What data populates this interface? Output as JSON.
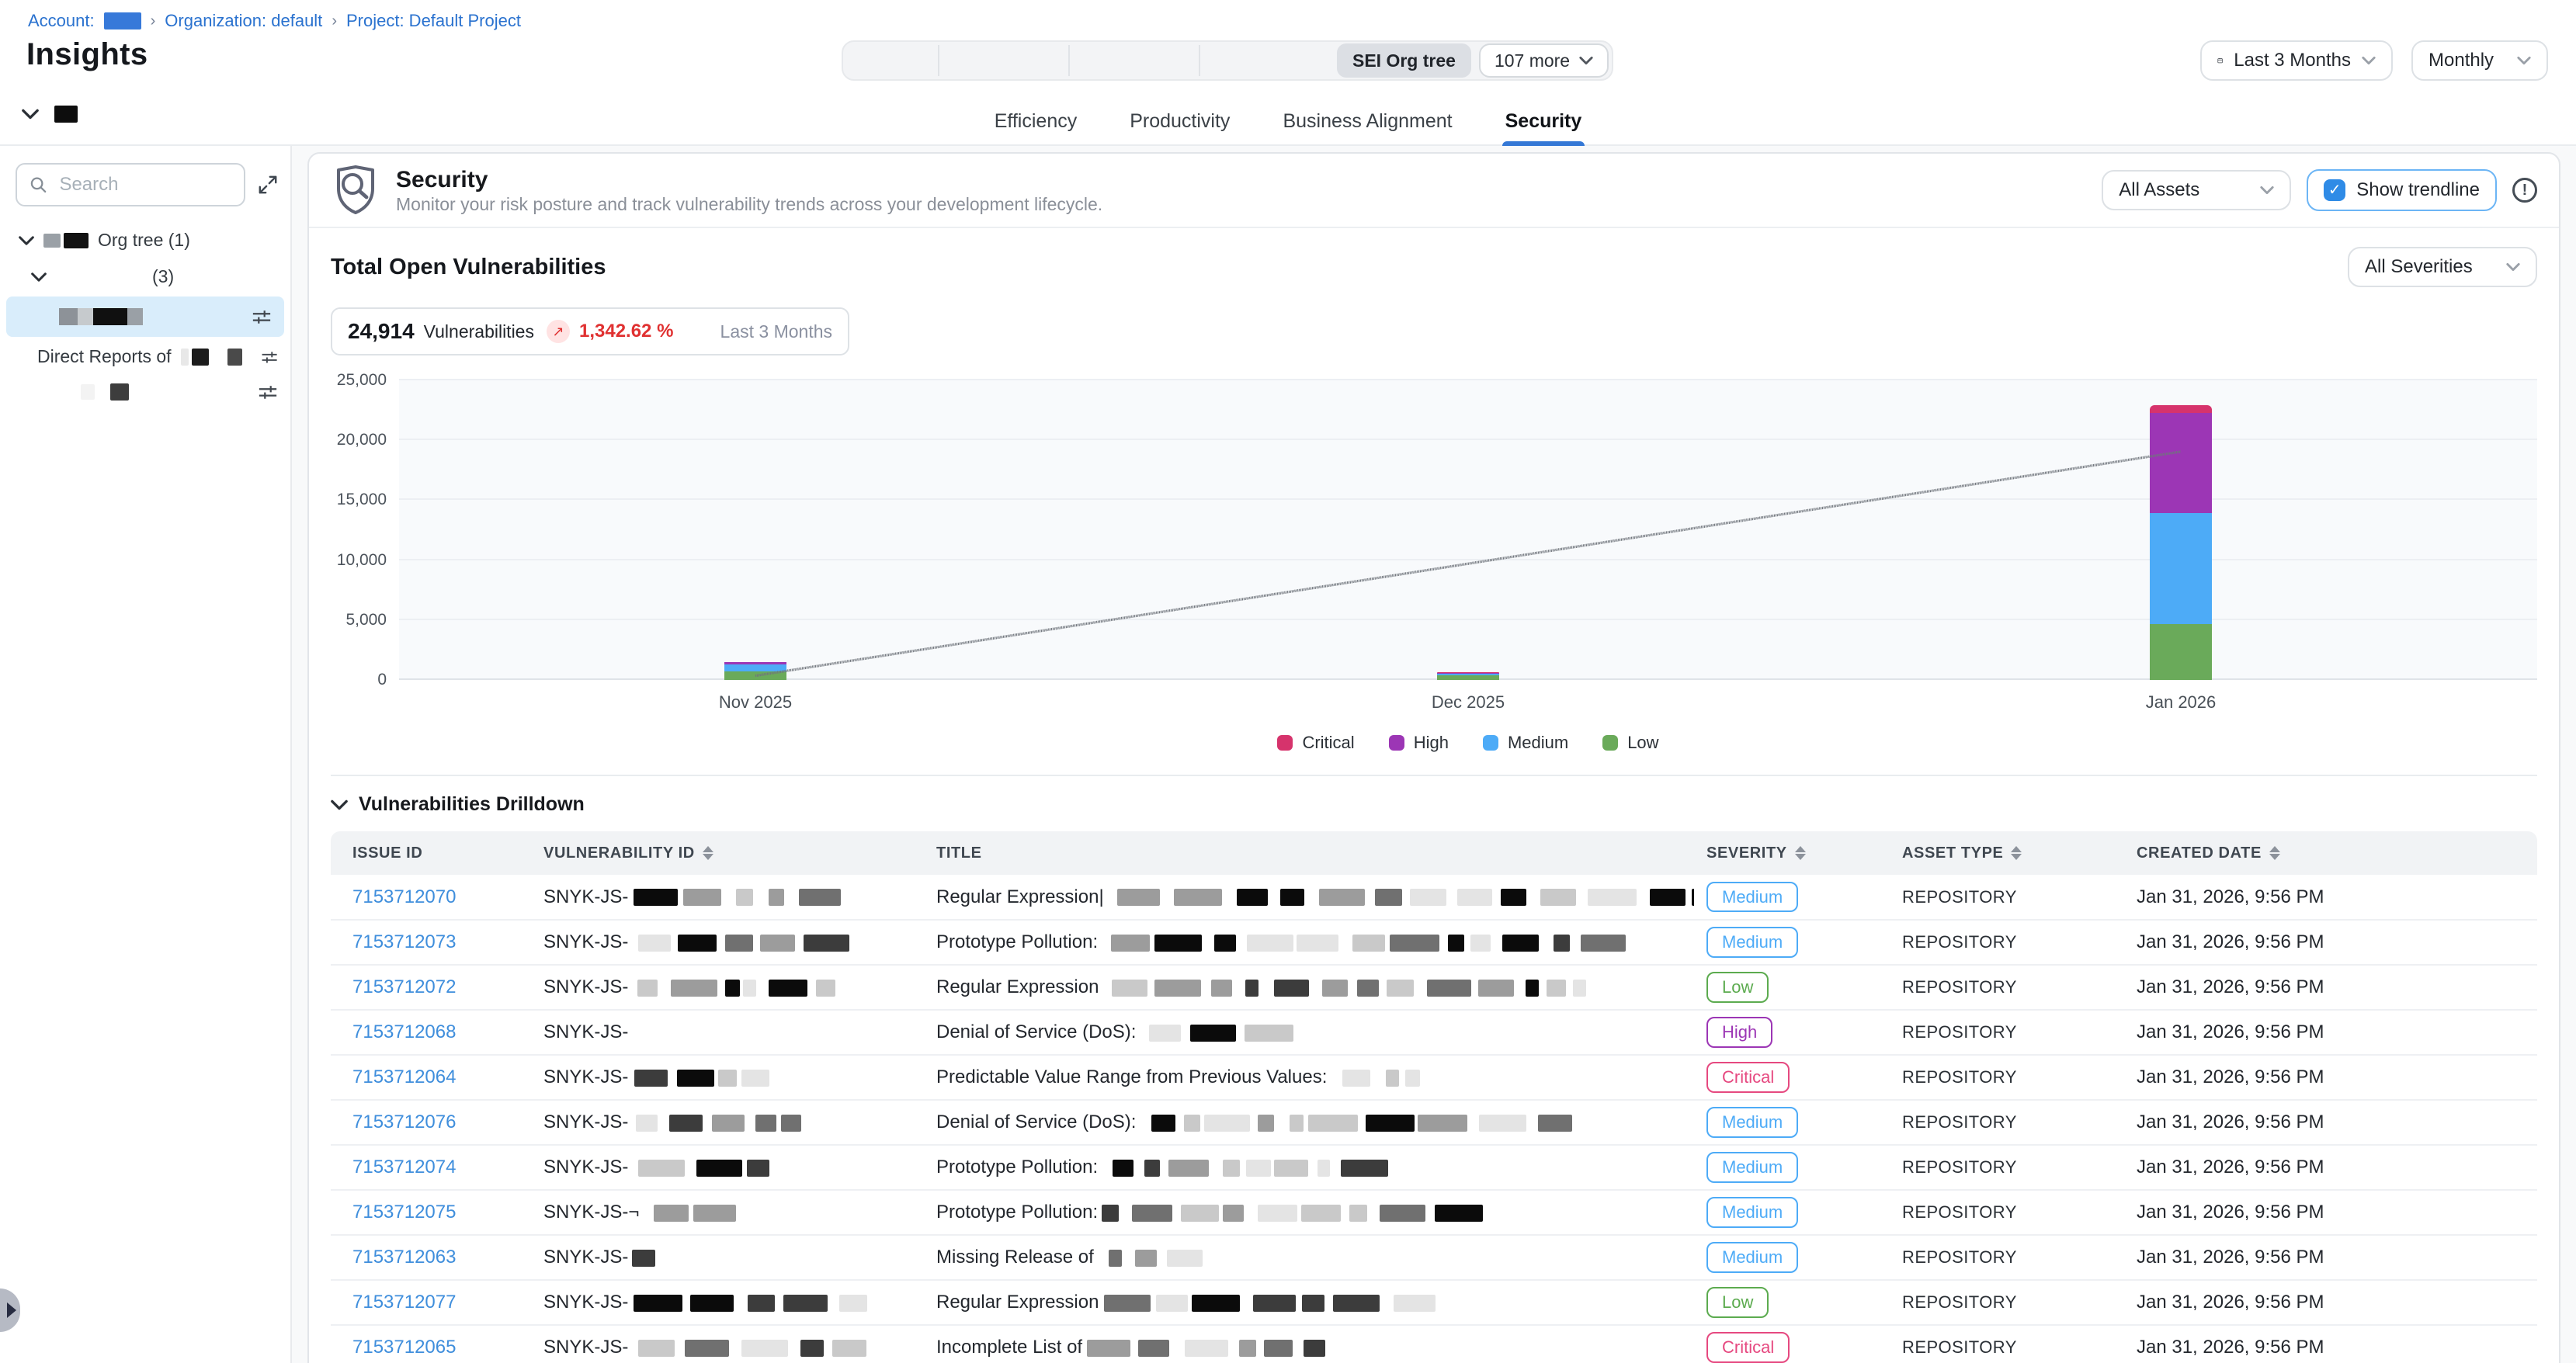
{
  "breadcrumb": {
    "account_label": "Account:",
    "separator": "›",
    "organization": "Organization: default",
    "project": "Project: Default Project"
  },
  "page_title": "Insights",
  "top_toolbar": {
    "selected_segment": "SEI Org tree",
    "more_button": "107 more"
  },
  "date_range": {
    "value": "Last 3 Months"
  },
  "granularity": {
    "value": "Monthly"
  },
  "tabs": [
    {
      "label": "Efficiency",
      "active": false
    },
    {
      "label": "Productivity",
      "active": false
    },
    {
      "label": "Business Alignment",
      "active": false
    },
    {
      "label": "Security",
      "active": true
    }
  ],
  "sidebar": {
    "search_placeholder": "Search",
    "org_tree_label": "Org tree (1)",
    "group_count_label": "(3)",
    "direct_reports_label": "Direct Reports of"
  },
  "security_section": {
    "title": "Security",
    "subtitle": "Monitor your risk posture and track vulnerability trends across your development lifecycle.",
    "assets_filter_value": "All Assets",
    "show_trendline_label": "Show trendline",
    "trendline_checked": true,
    "checkmark": "✓"
  },
  "summary": {
    "heading": "Total Open Vulnerabilities",
    "severity_filter_value": "All Severities",
    "count": "24,914",
    "count_label": "Vulnerabilities",
    "delta_icon": "↗",
    "delta_percent": "1,342.62 %",
    "period_label": "Last 3 Months"
  },
  "chart_data": {
    "type": "bar",
    "stacked": true,
    "title": "Total Open Vulnerabilities",
    "categories": [
      "Nov 2025",
      "Dec 2025",
      "Jan 2026"
    ],
    "series": [
      {
        "name": "Critical",
        "color": "#d6336c",
        "values": [
          40,
          25,
          600
        ]
      },
      {
        "name": "High",
        "color": "#9c36b5",
        "values": [
          160,
          90,
          8400
        ]
      },
      {
        "name": "Medium",
        "color": "#4dabf7",
        "values": [
          600,
          130,
          9250
        ]
      },
      {
        "name": "Low",
        "color": "#6aaa5a",
        "values": [
          700,
          380,
          4650
        ]
      }
    ],
    "trendline": {
      "show": true,
      "style": "dashed",
      "color": "#70757c",
      "values": [
        350,
        9700,
        19050
      ]
    },
    "ylim": [
      0,
      25000
    ],
    "yticks": [
      0,
      5000,
      10000,
      15000,
      20000,
      25000
    ],
    "ytick_labels": [
      "0",
      "5,000",
      "10,000",
      "15,000",
      "20,000",
      "25,000"
    ],
    "legend_position": "bottom",
    "grid": true
  },
  "drilldown": {
    "title": "Vulnerabilities Drilldown",
    "columns": [
      {
        "label": "ISSUE ID",
        "sortable": false
      },
      {
        "label": "VULNERABILITY ID",
        "sortable": true
      },
      {
        "label": "TITLE",
        "sortable": false
      },
      {
        "label": "SEVERITY",
        "sortable": true
      },
      {
        "label": "ASSET TYPE",
        "sortable": true
      },
      {
        "label": "CREATED DATE",
        "sortable": true
      }
    ],
    "severity_colors": {
      "Critical": "#e64980",
      "High": "#9c36b5",
      "Medium": "#4dabf7",
      "Low": "#5cab4f"
    },
    "rows": [
      {
        "issue_id": "7153712070",
        "vuln_id_prefix": "SNYK-JS-",
        "title_prefix": "Regular Expression|",
        "severity": "Medium",
        "asset_type": "REPOSITORY",
        "created_date": "Jan 31, 2026, 9:56 PM",
        "vuln_redact": 5,
        "title_redact": 14
      },
      {
        "issue_id": "7153712073",
        "vuln_id_prefix": "SNYK-JS-",
        "title_prefix": "Prototype Pollution:",
        "severity": "Medium",
        "asset_type": "REPOSITORY",
        "created_date": "Jan 31, 2026, 9:56 PM",
        "vuln_redact": 5,
        "title_redact": 12
      },
      {
        "issue_id": "7153712072",
        "vuln_id_prefix": "SNYK-JS-",
        "title_prefix": "Regular Expression",
        "severity": "Low",
        "asset_type": "REPOSITORY",
        "created_date": "Jan 31, 2026, 9:56 PM",
        "vuln_redact": 6,
        "title_redact": 13
      },
      {
        "issue_id": "7153712068",
        "vuln_id_prefix": "SNYK-JS-",
        "title_prefix": "Denial of Service (DoS):",
        "severity": "High",
        "asset_type": "REPOSITORY",
        "created_date": "Jan 31, 2026, 9:56 PM",
        "vuln_redact": 0,
        "title_redact": 3
      },
      {
        "issue_id": "7153712064",
        "vuln_id_prefix": "SNYK-JS-",
        "title_prefix": "Predictable Value Range from Previous Values:",
        "severity": "Critical",
        "asset_type": "REPOSITORY",
        "created_date": "Jan 31, 2026, 9:56 PM",
        "vuln_redact": 4,
        "title_redact": 3
      },
      {
        "issue_id": "7153712076",
        "vuln_id_prefix": "SNYK-JS-",
        "title_prefix": "Denial of Service (DoS):",
        "severity": "Medium",
        "asset_type": "REPOSITORY",
        "created_date": "Jan 31, 2026, 9:56 PM",
        "vuln_redact": 5,
        "title_redact": 10
      },
      {
        "issue_id": "7153712074",
        "vuln_id_prefix": "SNYK-JS-",
        "title_prefix": "Prototype Pollution:",
        "severity": "Medium",
        "asset_type": "REPOSITORY",
        "created_date": "Jan 31, 2026, 9:56 PM",
        "vuln_redact": 3,
        "title_redact": 8
      },
      {
        "issue_id": "7153712075",
        "vuln_id_prefix": "SNYK-JS-¬",
        "title_prefix": "Prototype Pollution:",
        "severity": "Medium",
        "asset_type": "REPOSITORY",
        "created_date": "Jan 31, 2026, 9:56 PM",
        "vuln_redact": 2,
        "title_redact": 9
      },
      {
        "issue_id": "7153712063",
        "vuln_id_prefix": "SNYK-JS-",
        "title_prefix": "Missing Release of",
        "severity": "Medium",
        "asset_type": "REPOSITORY",
        "created_date": "Jan 31, 2026, 9:56 PM",
        "vuln_redact": 1,
        "title_redact": 3
      },
      {
        "issue_id": "7153712077",
        "vuln_id_prefix": "SNYK-JS-",
        "title_prefix": "Regular Expression",
        "severity": "Low",
        "asset_type": "REPOSITORY",
        "created_date": "Jan 31, 2026, 9:56 PM",
        "vuln_redact": 5,
        "title_redact": 7
      },
      {
        "issue_id": "7153712065",
        "vuln_id_prefix": "SNYK-JS-",
        "title_prefix": "Incomplete List of",
        "severity": "Critical",
        "asset_type": "REPOSITORY",
        "created_date": "Jan 31, 2026, 9:56 PM",
        "vuln_redact": 5,
        "title_redact": 6
      }
    ]
  }
}
